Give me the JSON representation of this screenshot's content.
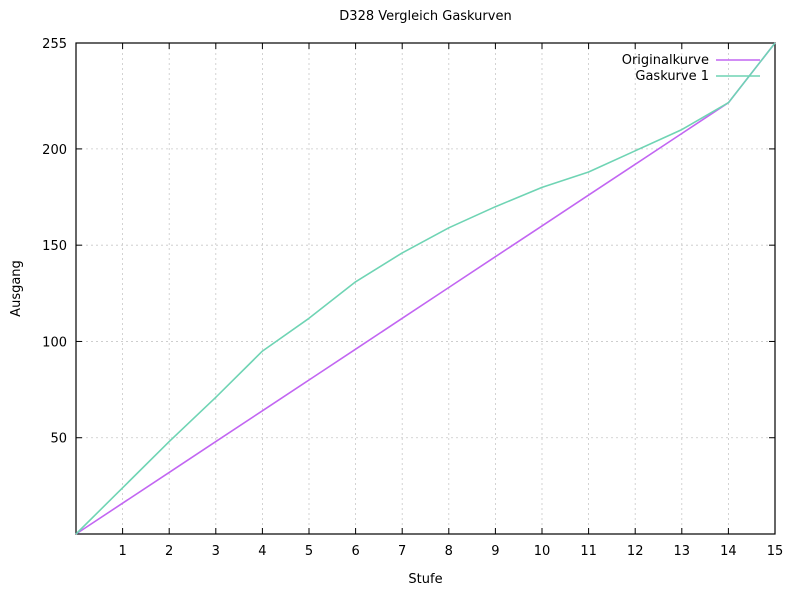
{
  "chart_data": {
    "type": "line",
    "title": "D328 Vergleich Gaskurven",
    "xlabel": "Stufe",
    "ylabel": "Ausgang",
    "xlim": [
      0,
      15
    ],
    "ylim": [
      0,
      255
    ],
    "x_ticks": [
      1,
      2,
      3,
      4,
      5,
      6,
      7,
      8,
      9,
      10,
      11,
      12,
      13,
      14,
      15
    ],
    "y_ticks": [
      50,
      100,
      150,
      200,
      255
    ],
    "grid": true,
    "legend_position": "top-right",
    "x": [
      0,
      1,
      2,
      3,
      4,
      5,
      6,
      7,
      8,
      9,
      10,
      11,
      12,
      13,
      14,
      15
    ],
    "series": [
      {
        "name": "Originalkurve",
        "color": "#c266f2",
        "values": [
          0,
          16,
          32,
          48,
          64,
          80,
          96,
          112,
          128,
          144,
          160,
          176,
          192,
          208,
          224,
          255
        ]
      },
      {
        "name": "Gaskurve 1",
        "color": "#6fd4b4",
        "values": [
          0,
          24,
          48,
          71,
          95,
          112,
          131,
          146,
          159,
          170,
          180,
          188,
          199,
          210,
          224,
          255
        ]
      }
    ]
  }
}
